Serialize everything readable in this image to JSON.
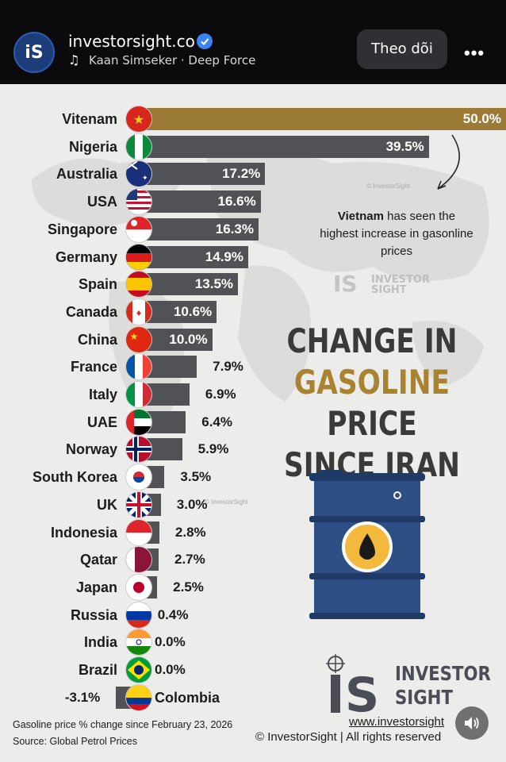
{
  "header": {
    "avatar_text": "iS",
    "account": "investorsight.co",
    "music_icon": "♫",
    "subtitle": "Kaan Simseker · Deep Force",
    "follow_label": "Theo dõi",
    "more_label": "•••"
  },
  "infographic": {
    "note_bold": "Vietnam",
    "note_rest": " has seen the highest increase in gasonline prices",
    "title_line1": "CHANGE IN",
    "title_line2_gold": "GASOLINE",
    "title_line2_rest": " PRICE",
    "title_line3": "SINCE IRAN WAR",
    "footer_caption": "Gasoline price % change since February 23, 2026",
    "footer_source": "Source: Global Petrol Prices",
    "brand_line1": "INVESTOR",
    "brand_line2": "SIGHT",
    "website": "www.investorsight",
    "copyright": "© InvestorSight |  All rights reserved",
    "watermark": "© InvestorSight",
    "wm_logo_line1": "INVESTOR",
    "wm_logo_line2": "SIGHT",
    "accent_color": "#9a7a34",
    "bar_color": "#515255"
  },
  "chart_data": {
    "type": "bar",
    "orientation": "horizontal",
    "title": "CHANGE IN GASOLINE PRICE SINCE IRAN WAR",
    "categories": [
      "Vitenam",
      "Nigeria",
      "Australia",
      "USA",
      "Singapore",
      "Germany",
      "Spain",
      "Canada",
      "China",
      "France",
      "Italy",
      "UAE",
      "Norway",
      "South Korea",
      "UK",
      "Indonesia",
      "Qatar",
      "Japan",
      "Russia",
      "India",
      "Brazil",
      "Colombia"
    ],
    "values": [
      50.0,
      39.5,
      17.2,
      16.6,
      16.3,
      14.9,
      13.5,
      10.6,
      10.0,
      7.9,
      6.9,
      6.4,
      5.9,
      3.5,
      3.0,
      2.8,
      2.7,
      2.5,
      0.4,
      0.0,
      0.0,
      -3.1
    ],
    "value_labels": [
      "50.0%",
      "39.5%",
      "17.2%",
      "16.6%",
      "16.3%",
      "14.9%",
      "13.5%",
      "10.6%",
      "10.0%",
      "7.9%",
      "6.9%",
      "6.4%",
      "5.9%",
      "3.5%",
      "3.0%",
      "2.8%",
      "2.7%",
      "2.5%",
      "0.4%",
      "0.0%",
      "0.0%",
      "-3.1%"
    ],
    "unit": "%"
  }
}
